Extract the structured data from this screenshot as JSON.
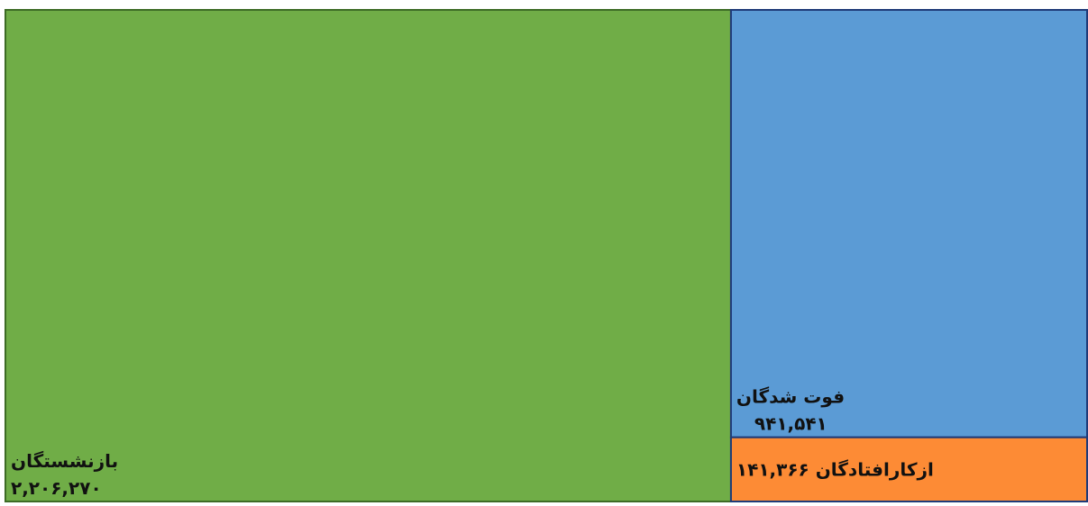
{
  "chart_data": {
    "type": "treemap",
    "categories": [
      "بازنشستگان",
      "فوت شدگان",
      "ازکارافتادگان"
    ],
    "values": [
      2206270,
      941541,
      141366
    ],
    "value_labels": [
      "۲,۲۰۶,۲۷۰",
      "۹۴۱,۵۴۱",
      "۱۴۱,۳۶۶"
    ],
    "colors": [
      "#70ad47",
      "#5b9bd5",
      "#fd8b35"
    ],
    "border_colors": [
      "#3d6b25",
      "#1f3a78",
      "#1f3a78"
    ]
  }
}
